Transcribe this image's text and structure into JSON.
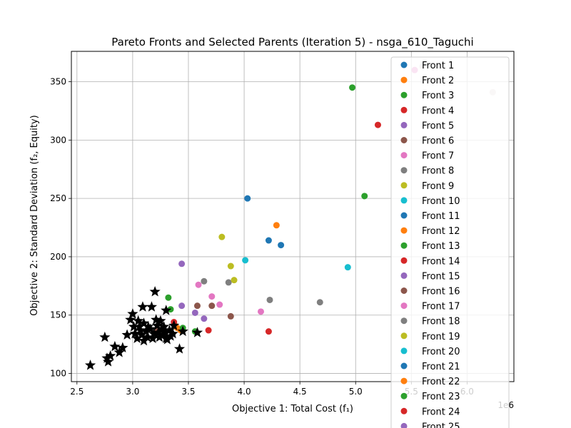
{
  "chart_data": {
    "type": "scatter",
    "title": "Pareto Fronts and Selected Parents (Iteration 5) - nsga_610_Taguchi",
    "xlabel": "Objective 1: Total Cost (f₁)",
    "ylabel": "Objective 2: Standard Deviation (f₂, Equity)",
    "xlim": [
      2.45,
      6.42
    ],
    "ylim": [
      93,
      376
    ],
    "x_multiplier": "1e6",
    "x_ticks": [
      "2.5",
      "3.0",
      "3.5",
      "4.0",
      "4.5",
      "5.0",
      "5.5",
      "6.0"
    ],
    "y_ticks": [
      "100",
      "150",
      "200",
      "250",
      "300",
      "350"
    ],
    "grid": true,
    "legend_position": "upper-right",
    "series": [
      {
        "name": "Front 1",
        "color": "#1f77b4",
        "points": [
          [
            4.03,
            250
          ],
          [
            4.22,
            214
          ],
          [
            4.33,
            210
          ]
        ]
      },
      {
        "name": "Front 2",
        "color": "#ff7f0e",
        "points": [
          [
            4.29,
            227
          ],
          [
            3.38,
            141
          ]
        ]
      },
      {
        "name": "Front 3",
        "color": "#2ca02c",
        "points": [
          [
            4.97,
            345
          ],
          [
            5.08,
            252
          ],
          [
            3.32,
            165
          ],
          [
            3.34,
            155
          ]
        ]
      },
      {
        "name": "Front 4",
        "color": "#d62728",
        "points": [
          [
            5.2,
            313
          ],
          [
            3.37,
            144
          ],
          [
            3.68,
            137
          ],
          [
            4.22,
            136
          ]
        ]
      },
      {
        "name": "Front 5",
        "color": "#9467bd",
        "points": [
          [
            3.44,
            194
          ],
          [
            3.44,
            158
          ],
          [
            3.56,
            152
          ],
          [
            3.64,
            147
          ]
        ]
      },
      {
        "name": "Front 6",
        "color": "#8c564b",
        "points": [
          [
            3.58,
            158
          ],
          [
            3.71,
            158
          ],
          [
            3.88,
            149
          ]
        ]
      },
      {
        "name": "Front 7",
        "color": "#e377c2",
        "points": [
          [
            3.59,
            176
          ],
          [
            3.71,
            166
          ],
          [
            3.78,
            159
          ],
          [
            4.15,
            153
          ]
        ]
      },
      {
        "name": "Front 8",
        "color": "#7f7f7f",
        "points": [
          [
            3.64,
            179
          ],
          [
            3.86,
            178
          ],
          [
            4.23,
            163
          ],
          [
            4.68,
            161
          ]
        ]
      },
      {
        "name": "Front 9",
        "color": "#bcbd22",
        "points": [
          [
            3.8,
            217
          ],
          [
            3.88,
            192
          ],
          [
            3.91,
            180
          ]
        ]
      },
      {
        "name": "Front 10",
        "color": "#17becf",
        "points": [
          [
            4.01,
            197
          ],
          [
            4.93,
            191
          ]
        ]
      },
      {
        "name": "Front 11",
        "color": "#1f77b4",
        "points": []
      },
      {
        "name": "Front 12",
        "color": "#ff7f0e",
        "points": [
          [
            3.4,
            139
          ],
          [
            3.43,
            137
          ]
        ]
      },
      {
        "name": "Front 13",
        "color": "#2ca02c",
        "points": [
          [
            3.45,
            139
          ],
          [
            3.56,
            136
          ]
        ]
      },
      {
        "name": "Front 14",
        "color": "#d62728",
        "points": []
      },
      {
        "name": "Front 15",
        "color": "#9467bd",
        "points": []
      },
      {
        "name": "Front 16",
        "color": "#8c564b",
        "points": [
          [
            3.22,
            136
          ]
        ]
      },
      {
        "name": "Front 17",
        "color": "#e377c2",
        "points": [
          [
            5.53,
            360
          ]
        ]
      },
      {
        "name": "Front 18",
        "color": "#7f7f7f",
        "points": []
      },
      {
        "name": "Front 19",
        "color": "#bcbd22",
        "points": []
      },
      {
        "name": "Front 20",
        "color": "#17becf",
        "points": []
      },
      {
        "name": "Front 21",
        "color": "#1f77b4",
        "points": []
      },
      {
        "name": "Front 22",
        "color": "#ff7f0e",
        "points": []
      },
      {
        "name": "Front 23",
        "color": "#2ca02c",
        "points": []
      },
      {
        "name": "Front 24",
        "color": "#d62728",
        "points": []
      },
      {
        "name": "Front 25",
        "color": "#9467bd",
        "points": []
      },
      {
        "name": "",
        "color": "#e0d8d4",
        "points": [
          [
            5.6,
            363
          ],
          [
            6.23,
            341
          ]
        ]
      }
    ],
    "selected_parents": {
      "color": "#000000",
      "marker": "star",
      "points": [
        [
          2.62,
          107
        ],
        [
          2.75,
          131
        ],
        [
          2.77,
          113
        ],
        [
          2.78,
          110
        ],
        [
          2.8,
          115
        ],
        [
          2.84,
          123
        ],
        [
          2.88,
          118
        ],
        [
          2.91,
          122
        ],
        [
          2.95,
          133
        ],
        [
          2.98,
          146
        ],
        [
          3.0,
          151
        ],
        [
          3.01,
          140
        ],
        [
          3.02,
          134
        ],
        [
          3.04,
          130
        ],
        [
          3.05,
          145
        ],
        [
          3.06,
          140
        ],
        [
          3.07,
          137
        ],
        [
          3.08,
          133
        ],
        [
          3.09,
          157
        ],
        [
          3.1,
          128
        ],
        [
          3.1,
          143
        ],
        [
          3.12,
          136
        ],
        [
          3.13,
          131
        ],
        [
          3.14,
          140
        ],
        [
          3.16,
          138
        ],
        [
          3.17,
          157
        ],
        [
          3.18,
          130
        ],
        [
          3.19,
          134
        ],
        [
          3.2,
          170
        ],
        [
          3.21,
          146
        ],
        [
          3.22,
          141
        ],
        [
          3.23,
          135
        ],
        [
          3.24,
          131
        ],
        [
          3.25,
          145
        ],
        [
          3.26,
          138
        ],
        [
          3.27,
          133
        ],
        [
          3.28,
          140
        ],
        [
          3.29,
          136
        ],
        [
          3.3,
          154
        ],
        [
          3.3,
          130
        ],
        [
          3.31,
          129
        ],
        [
          3.33,
          137
        ],
        [
          3.34,
          132
        ],
        [
          3.36,
          134
        ],
        [
          3.37,
          141
        ],
        [
          3.42,
          121
        ],
        [
          3.45,
          136
        ],
        [
          3.58,
          135
        ]
      ]
    }
  }
}
